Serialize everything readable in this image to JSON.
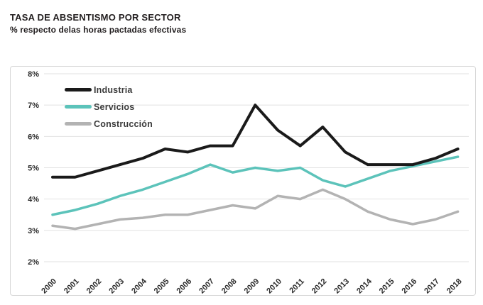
{
  "chart_data": {
    "type": "line",
    "title": "TASA DE ABSENTISMO POR SECTOR",
    "subtitle": "% respecto delas horas pactadas efectivas",
    "x": [
      2000,
      2001,
      2002,
      2003,
      2004,
      2005,
      2006,
      2007,
      2008,
      2009,
      2010,
      2011,
      2012,
      2013,
      2014,
      2015,
      2016,
      2017,
      2018
    ],
    "series": [
      {
        "name": "Industria",
        "color": "#1a1a1a",
        "values": [
          4.7,
          4.7,
          4.9,
          5.1,
          5.3,
          5.6,
          5.5,
          5.7,
          5.7,
          7.0,
          6.2,
          5.7,
          6.3,
          5.5,
          5.1,
          5.1,
          5.1,
          5.3,
          5.6
        ]
      },
      {
        "name": "Servicios",
        "color": "#5cc3ba",
        "values": [
          3.5,
          3.65,
          3.85,
          4.1,
          4.3,
          4.55,
          4.8,
          5.1,
          4.85,
          5.0,
          4.9,
          5.0,
          4.6,
          4.4,
          4.65,
          4.9,
          5.05,
          5.2,
          5.35
        ]
      },
      {
        "name": "Construcción",
        "color": "#b3b3b3",
        "values": [
          3.15,
          3.05,
          3.2,
          3.35,
          3.4,
          3.5,
          3.5,
          3.65,
          3.8,
          3.7,
          4.1,
          4.0,
          4.3,
          4.0,
          3.6,
          3.35,
          3.2,
          3.35,
          3.6
        ]
      }
    ],
    "ylim": [
      2,
      8
    ],
    "ytick_suffix": "%",
    "yticks": [
      "2%",
      "3%",
      "4%",
      "5%",
      "6%",
      "7%",
      "8%"
    ],
    "xlabel": "",
    "ylabel": "",
    "grid": true,
    "legend_position": "top-left",
    "gridline_color": "#e2e2e2",
    "border_color": "#d7d7d7",
    "text_color": "#2b2b2b"
  }
}
